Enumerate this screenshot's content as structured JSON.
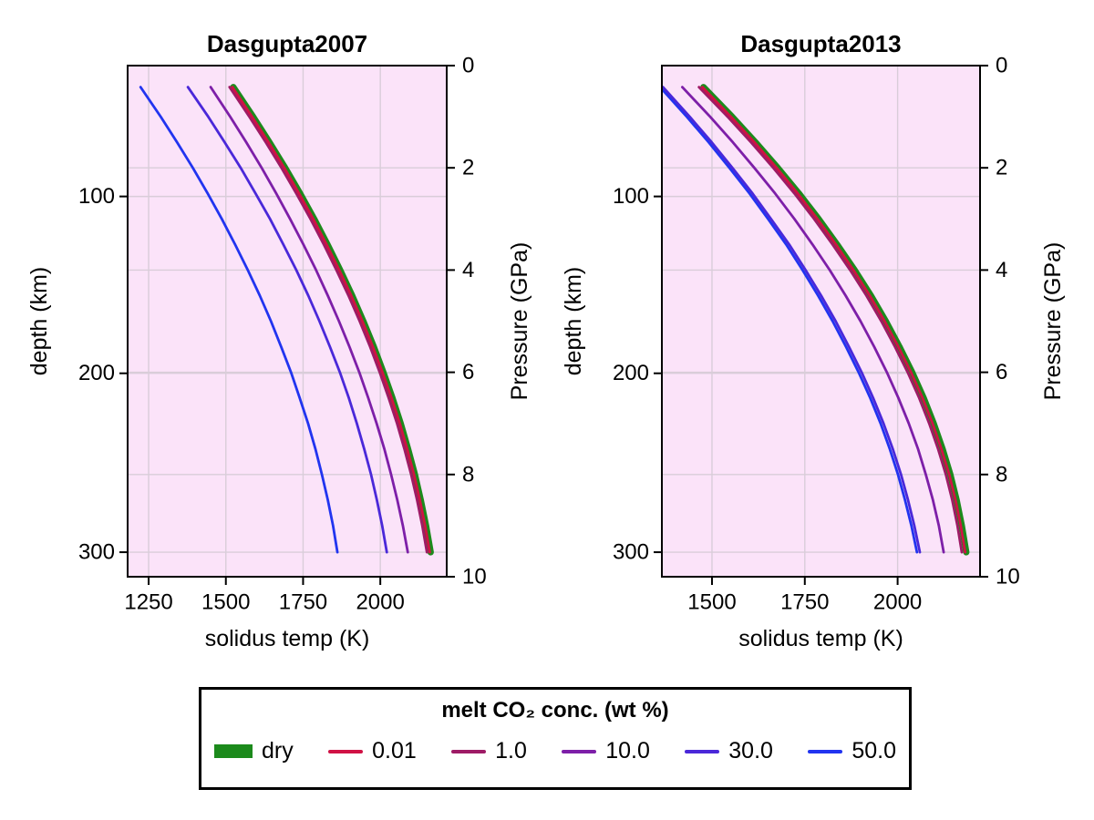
{
  "legend": {
    "title": "melt CO₂ conc. (wt %)",
    "entries": [
      {
        "label": "dry",
        "color": "#1c8a1c",
        "swatch": "patch"
      },
      {
        "label": "0.01",
        "color": "#d01245",
        "swatch": "line"
      },
      {
        "label": "1.0",
        "color": "#9e1b66",
        "swatch": "line"
      },
      {
        "label": "10.0",
        "color": "#7d1fa8",
        "swatch": "line"
      },
      {
        "label": "30.0",
        "color": "#4a28d9",
        "swatch": "line"
      },
      {
        "label": "50.0",
        "color": "#2134f0",
        "swatch": "line"
      }
    ]
  },
  "style": {
    "axes_background": "#fbe3f9",
    "gridline_color": "#d9cdd9",
    "spine_color": "#000000",
    "text_color": "#000000",
    "thin_linewidth": 2.8,
    "dry_linewidth": 7
  },
  "chart_data": {
    "type": "line",
    "x_axis_label": "solidus temp (K)",
    "pressure_axis": {
      "label": "Pressure (GPa)",
      "ticks": [
        0,
        2,
        4,
        6,
        8,
        10
      ],
      "lim": [
        0,
        10
      ],
      "grid_ticks": [
        2,
        4,
        6,
        8
      ]
    },
    "depth_axis": {
      "label": "depth (km)",
      "ticks": [
        {
          "label": "100",
          "pressure_gpa": 2.56
        },
        {
          "label": "200",
          "pressure_gpa": 6.02
        },
        {
          "label": "300",
          "pressure_gpa": 9.52
        }
      ]
    },
    "grid": true,
    "legend_position": "below",
    "pressures_gpa": [
      0.42,
      1,
      1.5,
      2,
      2.5,
      3,
      3.5,
      4,
      4.5,
      5,
      5.5,
      6,
      6.5,
      7,
      7.5,
      8,
      8.5,
      9,
      9.52
    ],
    "panels": [
      {
        "title": "Dasgupta2007",
        "xticks": [
          1250,
          1500,
          1750,
          2000
        ],
        "xlim": [
          1182,
          2215
        ],
        "series": [
          {
            "name": "50.0",
            "color": "#2134f0",
            "width": "thin",
            "temps_K": [
              1224,
              1289,
              1342,
              1393,
              1441,
              1487,
              1530,
              1571,
              1610,
              1646,
              1679,
              1711,
              1739,
              1766,
              1790,
              1811,
              1830,
              1847,
              1861
            ]
          },
          {
            "name": "30.0",
            "color": "#4a28d9",
            "width": "thin",
            "temps_K": [
              1377,
              1443,
              1496,
              1548,
              1596,
              1643,
              1686,
              1728,
              1767,
              1803,
              1837,
              1869,
              1898,
              1924,
              1948,
              1970,
              1989,
              2006,
              2021
            ]
          },
          {
            "name": "10.0",
            "color": "#7d1fa8",
            "width": "thin",
            "temps_K": [
              1451,
              1514,
              1566,
              1616,
              1663,
              1708,
              1751,
              1792,
              1830,
              1866,
              1900,
              1932,
              1961,
              1988,
              2013,
              2035,
              2055,
              2073,
              2089
            ]
          },
          {
            "name": "dry",
            "color": "#1c8a1c",
            "width": "dry",
            "temps_K": [
              1524,
              1588,
              1641,
              1692,
              1740,
              1786,
              1829,
              1870,
              1909,
              1945,
              1979,
              2010,
              2039,
              2066,
              2090,
              2112,
              2131,
              2148,
              2163
            ]
          },
          {
            "name": "1.0",
            "color": "#9e1b66",
            "width": "thin",
            "temps_K": [
              1512,
              1576,
              1629,
              1680,
              1728,
              1774,
              1817,
              1858,
              1897,
              1933,
              1967,
              1998,
              2027,
              2054,
              2078,
              2100,
              2119,
              2136,
              2151
            ]
          },
          {
            "name": "0.01",
            "color": "#d01245",
            "width": "thin",
            "temps_K": [
              1521,
              1585,
              1638,
              1689,
              1737,
              1783,
              1826,
              1867,
              1906,
              1942,
              1976,
              2007,
              2036,
              2063,
              2087,
              2109,
              2128,
              2145,
              2160
            ]
          }
        ]
      },
      {
        "title": "Dasgupta2013",
        "xticks": [
          1500,
          1750,
          2000
        ],
        "xlim": [
          1365,
          2222
        ],
        "series": [
          {
            "name": "50.0",
            "color": "#2134f0",
            "width": "thin",
            "temps_K": [
              1360,
              1432,
              1491,
              1547,
              1601,
              1651,
              1700,
              1744,
              1786,
              1825,
              1861,
              1895,
              1926,
              1954,
              1979,
              2001,
              2020,
              2037,
              2052
            ]
          },
          {
            "name": "30.0",
            "color": "#4a28d9",
            "width": "thin",
            "temps_K": [
              1368,
              1440,
              1499,
              1555,
              1609,
              1659,
              1708,
              1752,
              1794,
              1833,
              1869,
              1903,
              1934,
              1962,
              1987,
              2009,
              2028,
              2045,
              2060
            ]
          },
          {
            "name": "10.0",
            "color": "#7d1fa8",
            "width": "thin",
            "temps_K": [
              1420,
              1495,
              1556,
              1614,
              1670,
              1722,
              1771,
              1817,
              1860,
              1900,
              1937,
              1971,
              2002,
              2030,
              2055,
              2076,
              2095,
              2111,
              2124
            ]
          },
          {
            "name": "dry",
            "color": "#1c8a1c",
            "width": "dry",
            "temps_K": [
              1477,
              1554,
              1617,
              1677,
              1734,
              1787,
              1837,
              1884,
              1928,
              1968,
              2005,
              2039,
              2070,
              2097,
              2121,
              2142,
              2159,
              2173,
              2185
            ]
          },
          {
            "name": "1.0",
            "color": "#9e1b66",
            "width": "thin",
            "temps_K": [
              1465,
              1542,
              1605,
              1665,
              1722,
              1775,
              1825,
              1872,
              1916,
              1956,
              1993,
              2027,
              2058,
              2085,
              2109,
              2130,
              2147,
              2161,
              2173
            ]
          },
          {
            "name": "0.01",
            "color": "#d01245",
            "width": "thin",
            "temps_K": [
              1474,
              1551,
              1614,
              1674,
              1731,
              1784,
              1834,
              1881,
              1925,
              1965,
              2002,
              2036,
              2067,
              2094,
              2118,
              2139,
              2156,
              2170,
              2182
            ]
          }
        ]
      }
    ]
  }
}
